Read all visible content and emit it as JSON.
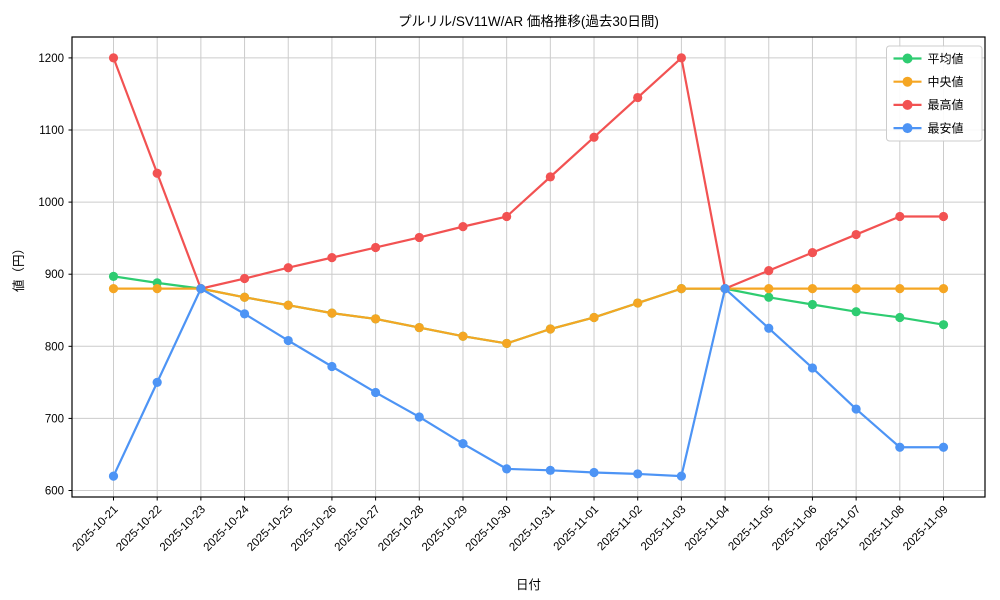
{
  "chart_data": {
    "type": "line",
    "title": "プルリル/SV11W/AR 価格推移(過去30日間)",
    "xlabel": "日付",
    "ylabel": "値（円）",
    "categories": [
      "2025-10-21",
      "2025-10-22",
      "2025-10-23",
      "2025-10-24",
      "2025-10-25",
      "2025-10-26",
      "2025-10-27",
      "2025-10-28",
      "2025-10-29",
      "2025-10-30",
      "2025-10-31",
      "2025-11-01",
      "2025-11-02",
      "2025-11-03",
      "2025-11-04",
      "2025-11-05",
      "2025-11-06",
      "2025-11-07",
      "2025-11-08",
      "2025-11-09"
    ],
    "series": [
      {
        "name": "平均値",
        "color": "#2ecc71",
        "values": [
          897,
          888,
          880,
          868,
          857,
          846,
          838,
          826,
          814,
          804,
          824,
          840,
          860,
          880,
          880,
          868,
          858,
          848,
          840,
          830
        ]
      },
      {
        "name": "中央値",
        "color": "#f5a623",
        "values": [
          880,
          880,
          880,
          868,
          857,
          846,
          838,
          826,
          814,
          804,
          824,
          840,
          860,
          880,
          880,
          880,
          880,
          880,
          880,
          880
        ]
      },
      {
        "name": "最高値",
        "color": "#f25252",
        "values": [
          1200,
          1040,
          880,
          894,
          909,
          923,
          937,
          951,
          966,
          980,
          1035,
          1090,
          1145,
          1200,
          880,
          905,
          930,
          955,
          980,
          980
        ]
      },
      {
        "name": "最安値",
        "color": "#4d94f5",
        "values": [
          620,
          750,
          880,
          845,
          808,
          772,
          736,
          702,
          665,
          630,
          628,
          625,
          623,
          620,
          880,
          825,
          770,
          713,
          660,
          660
        ]
      }
    ],
    "yticks": [
      600,
      700,
      800,
      900,
      1000,
      1100,
      1200
    ],
    "ylim": [
      591,
      1229
    ],
    "grid": true,
    "legend_position": "upper right",
    "grid_color": "#cccccc",
    "axis_color": "#000000",
    "background": "#ffffff"
  }
}
